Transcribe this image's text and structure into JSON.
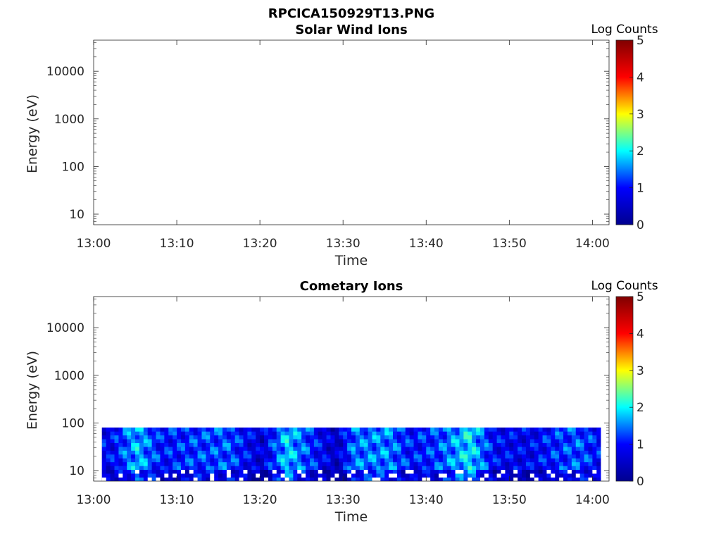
{
  "figure_title": "RPCICA150929T13.PNG",
  "colorbar_label": "Log Counts",
  "colormap": [
    "#00008f",
    "#0000ff",
    "#00ffff",
    "#ffff00",
    "#ff0000",
    "#800000"
  ],
  "chart_data": [
    {
      "type": "heatmap",
      "title": "Solar Wind Ions",
      "xlabel": "Time",
      "ylabel": "Energy (eV)",
      "x_ticks": [
        "13:00",
        "13:10",
        "13:20",
        "13:30",
        "13:40",
        "13:50",
        "14:00"
      ],
      "xlim": [
        "13:00",
        "14:02"
      ],
      "y_scale": "log",
      "y_ticks": [
        10,
        100,
        1000,
        10000
      ],
      "y_tick_labels": [
        "10",
        "100",
        "1000",
        "10000"
      ],
      "ylim": [
        6,
        45000
      ],
      "colorbar": {
        "label": "Log Counts",
        "ticks": [
          "0",
          "1",
          "2",
          "3",
          "4",
          "5"
        ],
        "range": [
          0,
          5
        ]
      },
      "data_present": false,
      "data": []
    },
    {
      "type": "heatmap",
      "title": "Cometary Ions",
      "xlabel": "Time",
      "ylabel": "Energy (eV)",
      "x_ticks": [
        "13:00",
        "13:10",
        "13:20",
        "13:30",
        "13:40",
        "13:50",
        "14:00"
      ],
      "xlim": [
        "13:00",
        "14:02"
      ],
      "y_scale": "log",
      "y_ticks": [
        10,
        100,
        1000,
        10000
      ],
      "y_tick_labels": [
        "10",
        "100",
        "1000",
        "10000"
      ],
      "ylim": [
        6,
        45000
      ],
      "colorbar": {
        "label": "Log Counts",
        "ticks": [
          "0",
          "1",
          "2",
          "3",
          "4",
          "5"
        ],
        "range": [
          0,
          5
        ]
      },
      "data_present": true,
      "data_time_range": [
        "13:01",
        "14:01"
      ],
      "data_energy_range_eV": [
        6,
        80
      ],
      "data": [
        {
          "time": "13:02",
          "log_counts": 0.9
        },
        {
          "time": "13:05",
          "log_counts": 1.7
        },
        {
          "time": "13:08",
          "log_counts": 1.0
        },
        {
          "time": "13:12",
          "log_counts": 1.2
        },
        {
          "time": "13:16",
          "log_counts": 1.3
        },
        {
          "time": "13:20",
          "log_counts": 0.6
        },
        {
          "time": "13:23",
          "log_counts": 1.8
        },
        {
          "time": "13:27",
          "log_counts": 0.9
        },
        {
          "time": "13:29",
          "log_counts": 0.5
        },
        {
          "time": "13:31",
          "log_counts": 1.4
        },
        {
          "time": "13:35",
          "log_counts": 1.5
        },
        {
          "time": "13:38",
          "log_counts": 1.0
        },
        {
          "time": "13:41",
          "log_counts": 1.2
        },
        {
          "time": "13:45",
          "log_counts": 1.9
        },
        {
          "time": "13:48",
          "log_counts": 0.9
        },
        {
          "time": "13:52",
          "log_counts": 0.8
        },
        {
          "time": "13:55",
          "log_counts": 1.1
        },
        {
          "time": "13:58",
          "log_counts": 1.3
        },
        {
          "time": "14:01",
          "log_counts": 0.9
        }
      ]
    }
  ]
}
